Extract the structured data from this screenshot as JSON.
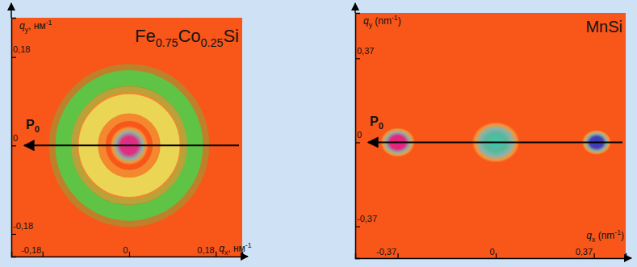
{
  "chart_data": [
    {
      "type": "image",
      "title": [
        "Fe",
        "0.75",
        "Co",
        "0.25",
        "Si"
      ],
      "x_label": {
        "symbol": "q",
        "subscript": "x",
        "unit": ", нм",
        "superscript": "-1"
      },
      "y_label": {
        "symbol": "q",
        "subscript": "y",
        "unit": ", нм",
        "superscript": "-1"
      },
      "arrow_label": [
        "P",
        "0"
      ],
      "xlim": [
        -0.245,
        0.235
      ],
      "ylim": [
        -0.226,
        0.26
      ],
      "xticks": [
        {
          "value": -0.18,
          "label": "-0,18"
        },
        0,
        {
          "value": 0.18,
          "label": "0,18"
        }
      ],
      "yticks": [
        {
          "value": -0.18,
          "label": "-0,18"
        },
        0,
        {
          "value": 0.18,
          "label": "0,18"
        }
      ],
      "rings": [
        {
          "q": 0.085,
          "width": 0.04,
          "color": "#e8e45a"
        },
        {
          "q": 0.137,
          "width": 0.033,
          "color": "#4fd04a"
        }
      ],
      "spots": [
        {
          "x": 0,
          "y": 0,
          "r": 0.04,
          "color": "#d92a8f"
        }
      ]
    },
    {
      "type": "image",
      "title": [
        "MnSi"
      ],
      "x_label": {
        "symbol": "q",
        "subscript": "x",
        "unit": " (nm",
        "superscript": "-1",
        "closing": ")"
      },
      "y_label": {
        "symbol": "q",
        "subscript": "y",
        "unit": " (nm",
        "superscript": "-1",
        "closing": ")"
      },
      "arrow_label": [
        "P",
        "0"
      ],
      "xlim": [
        -0.53,
        0.49
      ],
      "ylim": [
        -0.51,
        0.57
      ],
      "xticks": [
        {
          "value": -0.37,
          "label": "-0,37"
        },
        0,
        {
          "value": 0.37,
          "label": "0,37"
        }
      ],
      "yticks": [
        {
          "value": -0.37,
          "label": "-0,37"
        },
        0,
        {
          "value": 0.37,
          "label": "0,37"
        }
      ],
      "spots": [
        {
          "x": -0.37,
          "y": 0,
          "r": 0.065,
          "color": "#e0208a"
        },
        {
          "x": 0,
          "y": 0,
          "r": 0.09,
          "color": "#3cc8b0"
        },
        {
          "x": 0.38,
          "y": 0,
          "r": 0.055,
          "color": "#2a3cc8"
        }
      ]
    }
  ]
}
